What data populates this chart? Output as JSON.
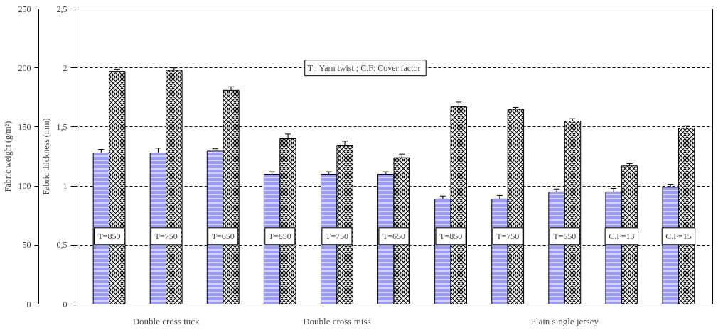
{
  "chart_data": {
    "type": "bar",
    "categories": [
      "T=850",
      "T=750",
      "T=650",
      "T=850",
      "T=750",
      "T=650",
      "T=850",
      "T=750",
      "T=650",
      "C.F=13",
      "C.F=15"
    ],
    "series": [
      {
        "color": "#9999ff",
        "values": [
          128,
          128,
          129.5,
          110,
          110,
          110,
          89,
          89,
          95,
          95,
          99
        ],
        "errors": [
          3,
          4,
          2,
          2,
          2,
          2,
          2.5,
          3,
          2.5,
          3,
          2.5
        ]
      },
      {
        "color": "#ffffff",
        "axis": "y2",
        "values": [
          1.97,
          1.98,
          1.81,
          1.4,
          1.34,
          1.24,
          1.67,
          1.65,
          1.55,
          1.17,
          1.49
        ],
        "errors": [
          0.02,
          0.02,
          0.03,
          0.04,
          0.04,
          0.03,
          0.04,
          0.015,
          0.02,
          0.02,
          0.02
        ]
      }
    ],
    "ylabel": "Fabric weight (g/m²)",
    "y2label": "Fabric thickness (mm)",
    "ylim": [
      0,
      250
    ],
    "yticks": [
      0,
      50,
      100,
      150,
      200,
      250
    ],
    "y2lim": [
      0,
      2.5
    ],
    "y2ticks": [
      0,
      {
        "value": 0.5,
        "label": "0,5"
      },
      1,
      {
        "value": 1.5,
        "label": "1,5"
      },
      2,
      {
        "value": 2.5,
        "label": "2,5"
      }
    ],
    "grid": "y",
    "annotations": [
      "T : Yarn twist  ; C.F: Cover factor",
      "Double cross tuck",
      "Double cross miss",
      "Plain single jersey"
    ]
  }
}
